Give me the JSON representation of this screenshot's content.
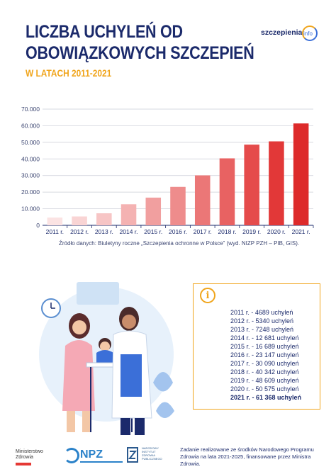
{
  "header": {
    "title_line1": "LICZBA UCHYLEŃ OD",
    "title_line2": "OBOWIĄZKOWYCH SZCZEPIEŃ",
    "subtitle": "W LATACH 2011-2021",
    "logo_text": "szczepienia",
    "logo_info": "info"
  },
  "chart_data": {
    "type": "bar",
    "categories": [
      "2011 r.",
      "2012 r.",
      "2013 r.",
      "2014 r.",
      "2015 r.",
      "2016 r.",
      "2017 r.",
      "2018 r.",
      "2019 r.",
      "2020 r.",
      "2021 r."
    ],
    "values": [
      4689,
      5340,
      7248,
      12681,
      16689,
      23147,
      30090,
      40342,
      48609,
      50575,
      61368
    ],
    "ylim": [
      0,
      70000
    ],
    "yticks": [
      "0",
      "10.000",
      "20.000",
      "30.000",
      "40.000",
      "50.000",
      "60.000",
      "70.000"
    ],
    "grid": true,
    "colors": [
      "#fbe3e3",
      "#f9d4d4",
      "#f7c5c5",
      "#f4b2b2",
      "#f19f9f",
      "#ee8c8c",
      "#eb7777",
      "#e86262",
      "#e54b4b",
      "#e23838",
      "#dd2a2a"
    ]
  },
  "source": "Źródło danych: Biuletyny roczne „Szczepienia ochronne w Polsce” (wyd. NIZP PZH – PIB, GIS).",
  "info": {
    "icon": "info-icon",
    "accent": "#f0a51c",
    "items": [
      "2011 r. - 4689 uchyleń",
      "2012 r. - 5340 uchyleń",
      "2013 r. - 7248 uchyleń",
      "2014 r. - 12 681 uchyleń",
      "2015 r. - 16 689 uchyleń",
      "2016 r. - 23 147 uchyleń",
      "2017 r. - 30 090 uchyleń",
      "2018 r. - 40 342 uchyleń",
      "2019 r. - 48 609 uchyleń",
      "2020 r. - 50 575 uchyleń",
      "2021 r. - 61 368 uchyleń"
    ]
  },
  "footer": {
    "mz_line1": "Ministerstwo",
    "mz_line2": "Zdrowia",
    "npz": "NPZ",
    "nizp_line1": "NARODOWY",
    "nizp_line2": "INSTYTUT",
    "nizp_line3": "ZDROWIA",
    "nizp_line4": "PUBLICZNEGO",
    "note": "Zadanie realizowane ze środków Narodowego Programu Zdrowia na lata 2021-2025, finansowane przez Ministra Zdrowia."
  }
}
